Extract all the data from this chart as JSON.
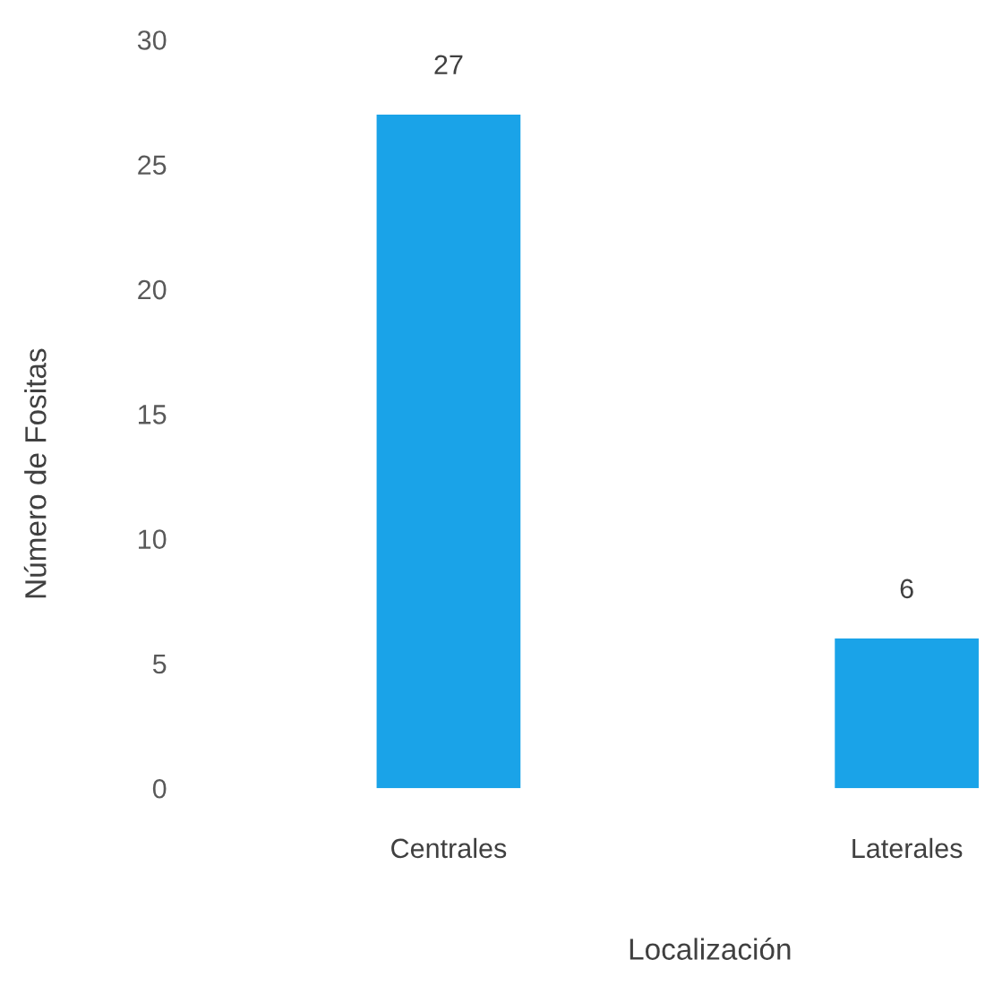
{
  "chart_data": {
    "type": "bar",
    "categories": [
      "Centrales",
      "Laterales"
    ],
    "values": [
      27,
      6
    ],
    "color": "#1aa3e8",
    "xlabel": "Localización",
    "ylabel": "Número de Fositas",
    "ylim": [
      0,
      30
    ],
    "yticks": [
      0,
      5,
      10,
      15,
      20,
      25,
      30
    ],
    "data_labels": true
  }
}
